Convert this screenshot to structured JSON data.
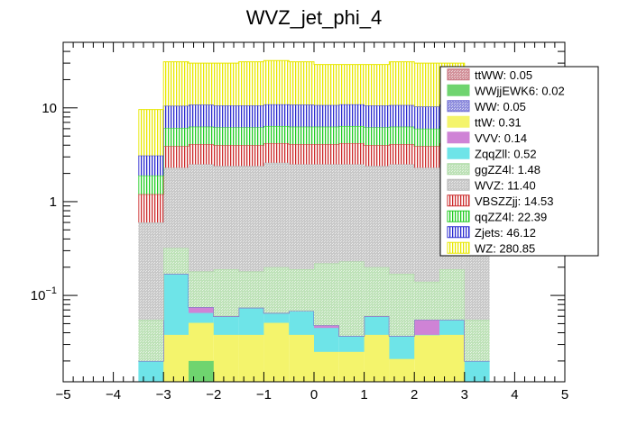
{
  "chart_data": {
    "type": "bar",
    "stacked": true,
    "title": "WVZ_jet_phi_4",
    "xlabel": "",
    "ylabel": "",
    "xlim": [
      -5,
      5
    ],
    "ylog": true,
    "ylim": [
      0.012,
      50
    ],
    "x_ticks": [
      "−5",
      "−4",
      "−3",
      "−2",
      "−1",
      "0",
      "1",
      "2",
      "3",
      "4",
      "5"
    ],
    "y_ticks": [
      "10<sup>−1</sup>",
      "1",
      "10"
    ],
    "bin_edges": [
      -3.5,
      -3.0,
      -2.5,
      -2.0,
      -1.5,
      -1.0,
      -0.5,
      0.0,
      0.5,
      1.0,
      1.5,
      2.0,
      2.5,
      3.0,
      3.5
    ],
    "legend_position": "top-right",
    "series": [
      {
        "key": "ttWW",
        "label": "ttWW: 0.05",
        "color": "#c46e7a",
        "pattern": "hatch-dense"
      },
      {
        "key": "WWjjEWK6",
        "label": "WWjjEWK6: 0.02",
        "color": "#6fd46f",
        "pattern": "solid"
      },
      {
        "key": "WW",
        "label": "WW: 0.05",
        "color": "#6c6ad2",
        "pattern": "hatch-dense"
      },
      {
        "key": "ttW",
        "label": "ttW: 0.31",
        "color": "#f4f46c",
        "pattern": "solid"
      },
      {
        "key": "VVV",
        "label": "VVV: 0.14",
        "color": "#cf83d6",
        "pattern": "solid"
      },
      {
        "key": "ZqqZll",
        "label": "ZqqZll: 0.52",
        "color": "#6ee4e8",
        "pattern": "solid"
      },
      {
        "key": "ggZZ4l",
        "label": "ggZZ4l: 1.48",
        "color": "#a8d8a0",
        "pattern": "hatch-dense"
      },
      {
        "key": "WVZ",
        "label": "WVZ: 11.40",
        "color": "#b5b5b5",
        "pattern": "hatch-dense"
      },
      {
        "key": "VBSZZjj",
        "label": "VBSZZjj: 14.53",
        "color": "#cc2b2b",
        "pattern": "vlines"
      },
      {
        "key": "qqZZ4l",
        "label": "qqZZ4l: 22.39",
        "color": "#22cc22",
        "pattern": "vlines"
      },
      {
        "key": "Zjets",
        "label": "Zjets: 46.12",
        "color": "#2a2ad0",
        "pattern": "vlines"
      },
      {
        "key": "WZ",
        "label": "WZ: 280.85",
        "color": "#e8e800",
        "pattern": "vlines"
      }
    ],
    "stack_order": [
      "WWjjEWK6",
      "ttW",
      "ZqqZll",
      "VVV",
      "ttWW",
      "WW",
      "ggZZ4l",
      "WVZ",
      "VBSZZjj",
      "qqZZ4l",
      "Zjets",
      "WZ"
    ],
    "cumulative_top": [
      {
        "key": "WWjjEWK6",
        "values": [
          0,
          0,
          0.02,
          0,
          0,
          0,
          0,
          0,
          0,
          0,
          0,
          0,
          0,
          0
        ]
      },
      {
        "key": "ttW",
        "values": [
          0,
          0.038,
          0.051,
          0.038,
          0.038,
          0.051,
          0.038,
          0.025,
          0.025,
          0.038,
          0.021,
          0.038,
          0.038,
          0
        ]
      },
      {
        "key": "ZqqZll",
        "values": [
          0.02,
          0.17,
          0.065,
          0.06,
          0.074,
          0.065,
          0.068,
          0.045,
          0.037,
          0.06,
          0.037,
          0.038,
          0.055,
          0.02
        ]
      },
      {
        "key": "VVV",
        "values": [
          0.02,
          0.17,
          0.075,
          0.06,
          0.074,
          0.065,
          0.068,
          0.048,
          0.037,
          0.06,
          0.037,
          0.055,
          0.055,
          0.02
        ]
      },
      {
        "key": "ttWW",
        "values": [
          0.02,
          0.17,
          0.075,
          0.06,
          0.074,
          0.065,
          0.068,
          0.048,
          0.037,
          0.06,
          0.037,
          0.055,
          0.055,
          0.02
        ]
      },
      {
        "key": "WW",
        "values": [
          0.02,
          0.17,
          0.075,
          0.06,
          0.074,
          0.065,
          0.068,
          0.048,
          0.037,
          0.06,
          0.037,
          0.055,
          0.055,
          0.02
        ]
      },
      {
        "key": "ggZZ4l",
        "values": [
          0.055,
          0.32,
          0.18,
          0.19,
          0.18,
          0.2,
          0.19,
          0.22,
          0.23,
          0.2,
          0.17,
          0.14,
          0.19,
          0.055
        ]
      },
      {
        "key": "WVZ",
        "values": [
          0.6,
          2.3,
          2.5,
          2.4,
          2.4,
          2.6,
          2.5,
          2.5,
          2.5,
          2.4,
          2.5,
          2.3,
          2.5,
          0.65
        ]
      },
      {
        "key": "VBSZZjj",
        "values": [
          1.2,
          3.9,
          4.1,
          4.0,
          4.0,
          4.2,
          4.1,
          4.1,
          4.2,
          4.0,
          4.1,
          3.9,
          4.2,
          1.2
        ]
      },
      {
        "key": "qqZZ4l",
        "values": [
          1.9,
          6.1,
          6.3,
          6.2,
          6.2,
          6.4,
          6.3,
          6.3,
          6.4,
          6.2,
          6.3,
          6.0,
          6.4,
          1.9
        ]
      },
      {
        "key": "Zjets",
        "values": [
          3.1,
          10.5,
          10.8,
          10.6,
          10.6,
          10.9,
          10.8,
          10.7,
          10.9,
          10.6,
          10.7,
          10.3,
          10.9,
          3.1
        ]
      },
      {
        "key": "WZ",
        "values": [
          9.6,
          31,
          30,
          30,
          31,
          32,
          31,
          29,
          29,
          29,
          31,
          30,
          30,
          9.6
        ]
      }
    ]
  }
}
